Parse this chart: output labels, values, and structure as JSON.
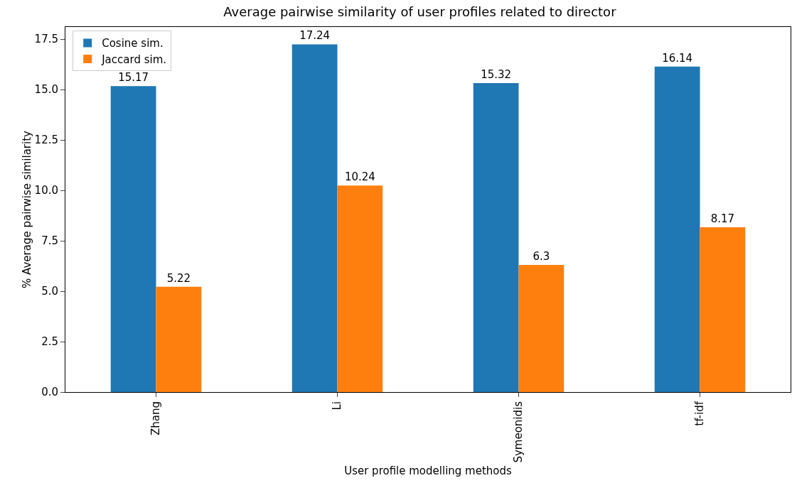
{
  "chart_data": {
    "type": "bar",
    "title": "Average pairwise similarity of user profiles related to director",
    "xlabel": "User profile modelling methods",
    "ylabel": "% Average pairwise similarity",
    "categories": [
      "Zhang",
      "Li",
      "Symeonidis",
      "tf-idf"
    ],
    "series": [
      {
        "name": "Cosine sim.",
        "color": "#1f77b4",
        "values": [
          15.17,
          17.24,
          15.32,
          16.14
        ]
      },
      {
        "name": "Jaccard sim.",
        "color": "#ff7f0e",
        "values": [
          5.22,
          10.24,
          6.3,
          8.17
        ]
      }
    ],
    "ylim": [
      0,
      18.1
    ],
    "yticks": [
      {
        "value": 0,
        "label": "0.0"
      },
      {
        "value": 2.5,
        "label": "2.5"
      },
      {
        "value": 5,
        "label": "5.0"
      },
      {
        "value": 7.5,
        "label": "7.5"
      },
      {
        "value": 10,
        "label": "10.0"
      },
      {
        "value": 12.5,
        "label": "12.5"
      },
      {
        "value": 15,
        "label": "15.0"
      },
      {
        "value": 17.5,
        "label": "17.5"
      }
    ],
    "grid": false,
    "legend": "top left",
    "data_labels": true
  }
}
